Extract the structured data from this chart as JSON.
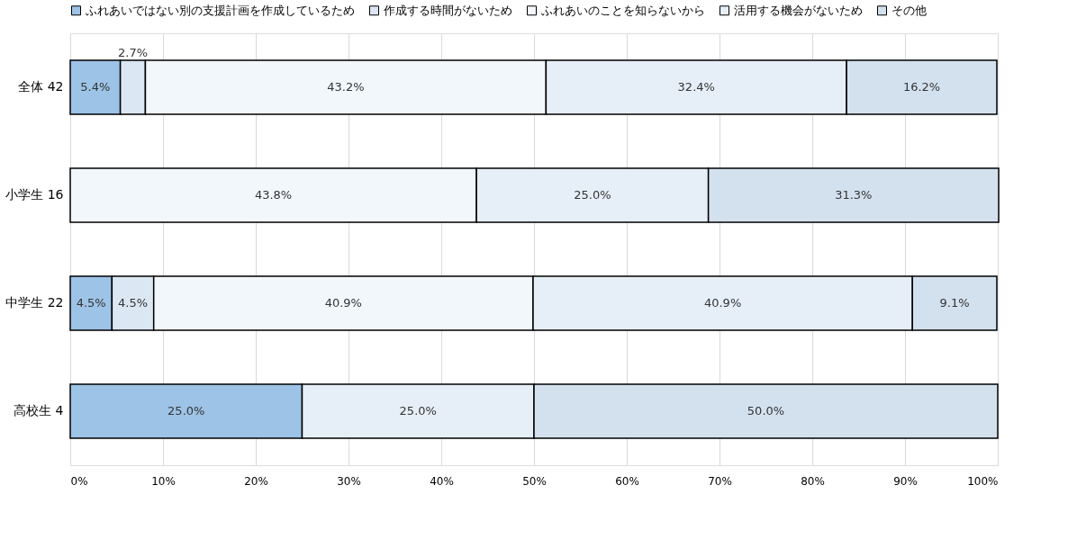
{
  "chart_data": {
    "type": "bar",
    "orientation": "horizontal",
    "stacked": true,
    "grid": "x",
    "legend": "top",
    "categories": [
      "全体  42",
      "小学生 16",
      "中学生 22",
      "高校生  4"
    ],
    "series": [
      {
        "name": "ふれあいではない別の支援計画を作成しているため",
        "color": "#9dc3e6",
        "values": [
          5.4,
          null,
          4.5,
          25.0
        ],
        "value_labels": [
          "5.4%",
          null,
          "4.5%",
          "25.0%"
        ]
      },
      {
        "name": "作成する時間がないため",
        "color": "#dbe7f3",
        "values": [
          2.7,
          null,
          4.5,
          null
        ],
        "value_labels": [
          "2.7%",
          null,
          "4.5%",
          null
        ]
      },
      {
        "name": "ふれあいのことを知らないから",
        "color": "#f2f7fc",
        "values": [
          43.2,
          43.8,
          40.9,
          null
        ],
        "value_labels": [
          "43.2%",
          "43.8%",
          "40.9%",
          null
        ]
      },
      {
        "name": "活用する機会がないため",
        "color": "#e6eff8",
        "values": [
          32.4,
          25.0,
          40.9,
          25.0
        ],
        "value_labels": [
          "32.4%",
          "25.0%",
          "40.9%",
          "25.0%"
        ]
      },
      {
        "name": "その他",
        "color": "#d3e1ef",
        "values": [
          16.2,
          31.3,
          9.1,
          50.0
        ],
        "value_labels": [
          "16.2%",
          "31.3%",
          "9.1%",
          "50.0%"
        ]
      }
    ],
    "xlim": [
      0,
      100
    ],
    "xticks": [
      {
        "value": 0,
        "label": "0%"
      },
      {
        "value": 10,
        "label": "10%"
      },
      {
        "value": 20,
        "label": "20%"
      },
      {
        "value": 30,
        "label": "30%"
      },
      {
        "value": 40,
        "label": "40%"
      },
      {
        "value": 50,
        "label": "50%"
      },
      {
        "value": 60,
        "label": "60%"
      },
      {
        "value": 70,
        "label": "70%"
      },
      {
        "value": 80,
        "label": "80%"
      },
      {
        "value": 90,
        "label": "90%"
      },
      {
        "value": 100,
        "label": "100%"
      }
    ]
  }
}
